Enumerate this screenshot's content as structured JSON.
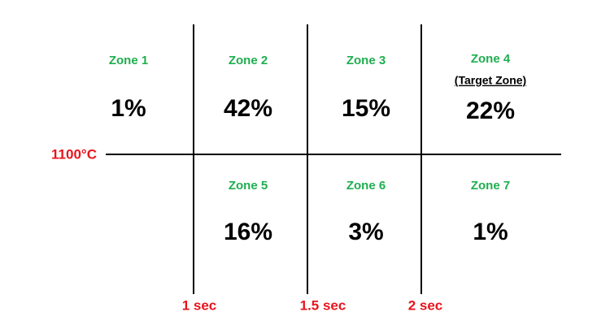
{
  "zones": [
    {
      "label": "Zone 1",
      "value": "1%"
    },
    {
      "label": "Zone 2",
      "value": "42%"
    },
    {
      "label": "Zone 3",
      "value": "15%"
    },
    {
      "label": "Zone 4",
      "note": "(Target Zone)",
      "value": "22%"
    },
    {
      "label": "Zone 5",
      "value": "16%"
    },
    {
      "label": "Zone 6",
      "value": "3%"
    },
    {
      "label": "Zone 7",
      "value": "1%"
    }
  ],
  "temperature_label": "1100°C",
  "time_labels": [
    "1 sec",
    "1.5 sec",
    "2 sec"
  ]
}
